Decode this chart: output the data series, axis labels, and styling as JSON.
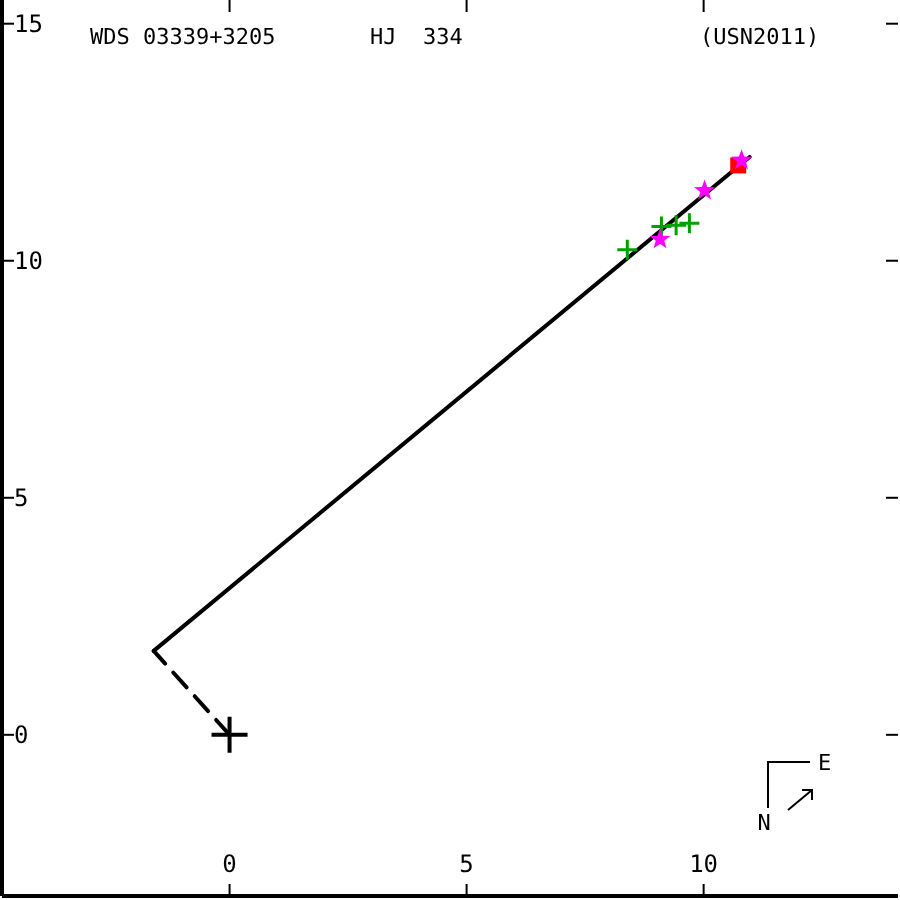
{
  "chart_data": {
    "type": "scatter",
    "title": "WDS 03339+3205",
    "subtitle": "HJ  334",
    "annotations": [
      "(USN2011)",
      "N",
      "E"
    ],
    "xlim": [
      -4.8,
      14.1
    ],
    "ylim": [
      -3.4,
      15.5
    ],
    "xticks": [
      0,
      5,
      10
    ],
    "yticks": [
      0,
      5,
      10,
      15
    ],
    "grid": false,
    "series": [
      {
        "type": "line",
        "color": "#000000",
        "line_style": "solid",
        "x": [
          -1.6,
          10.97
        ],
        "values": [
          1.77,
          12.19
        ]
      },
      {
        "type": "line",
        "color": "#000000",
        "line_style": "dashed",
        "x": [
          0,
          -1.6
        ],
        "values": [
          0,
          1.77
        ]
      },
      {
        "color": "#00a000",
        "marker": "cross",
        "x": [
          8.39,
          9.11,
          9.42,
          9.7
        ],
        "values": [
          10.23,
          10.72,
          10.75,
          10.79
        ]
      },
      {
        "color": "#ff0000",
        "marker": "square",
        "x": [
          10.73
        ],
        "values": [
          12.01
        ]
      },
      {
        "color": "#ff00ff",
        "marker": "star",
        "x": [
          9.08,
          10.02,
          10.8
        ],
        "values": [
          10.45,
          11.48,
          12.12
        ]
      },
      {
        "color": "#000000",
        "marker": "cross",
        "x": [
          0
        ],
        "values": [
          0
        ]
      }
    ]
  }
}
